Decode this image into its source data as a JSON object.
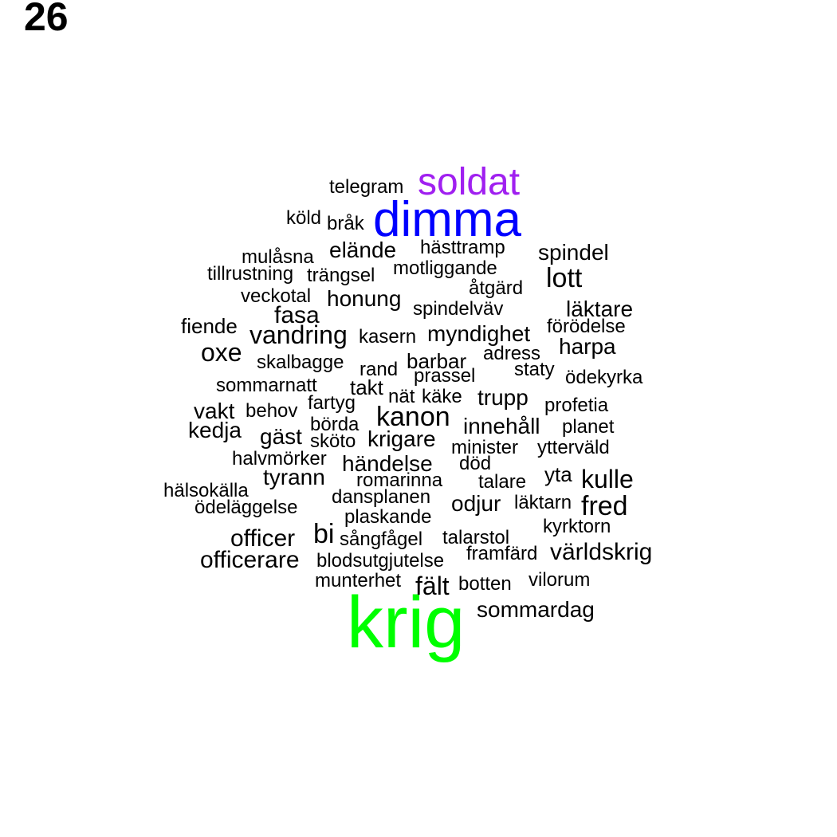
{
  "page_number": "26",
  "word_cloud": {
    "words": [
      {
        "text": "krig",
        "color": "#00ff00"
      },
      {
        "text": "dimma",
        "color": "#0000ff"
      },
      {
        "text": "soldat",
        "color": "#a020f0"
      },
      {
        "text": "telegram",
        "color": "#000000"
      },
      {
        "text": "köld",
        "color": "#000000"
      },
      {
        "text": "bråk",
        "color": "#000000"
      },
      {
        "text": "mulåsna",
        "color": "#000000"
      },
      {
        "text": "elände",
        "color": "#000000"
      },
      {
        "text": "hästtramp",
        "color": "#000000"
      },
      {
        "text": "spindel",
        "color": "#000000"
      },
      {
        "text": "tillrustning",
        "color": "#000000"
      },
      {
        "text": "trängsel",
        "color": "#000000"
      },
      {
        "text": "motliggande",
        "color": "#000000"
      },
      {
        "text": "lott",
        "color": "#000000"
      },
      {
        "text": "åtgärd",
        "color": "#000000"
      },
      {
        "text": "veckotal",
        "color": "#000000"
      },
      {
        "text": "honung",
        "color": "#000000"
      },
      {
        "text": "spindelväv",
        "color": "#000000"
      },
      {
        "text": "läktare",
        "color": "#000000"
      },
      {
        "text": "fasa",
        "color": "#000000"
      },
      {
        "text": "fiende",
        "color": "#000000"
      },
      {
        "text": "förödelse",
        "color": "#000000"
      },
      {
        "text": "vandring",
        "color": "#000000"
      },
      {
        "text": "kasern",
        "color": "#000000"
      },
      {
        "text": "myndighet",
        "color": "#000000"
      },
      {
        "text": "harpa",
        "color": "#000000"
      },
      {
        "text": "oxe",
        "color": "#000000"
      },
      {
        "text": "adress",
        "color": "#000000"
      },
      {
        "text": "skalbagge",
        "color": "#000000"
      },
      {
        "text": "barbar",
        "color": "#000000"
      },
      {
        "text": "staty",
        "color": "#000000"
      },
      {
        "text": "rand",
        "color": "#000000"
      },
      {
        "text": "prassel",
        "color": "#000000"
      },
      {
        "text": "ödekyrka",
        "color": "#000000"
      },
      {
        "text": "sommarnatt",
        "color": "#000000"
      },
      {
        "text": "takt",
        "color": "#000000"
      },
      {
        "text": "nät",
        "color": "#000000"
      },
      {
        "text": "käke",
        "color": "#000000"
      },
      {
        "text": "trupp",
        "color": "#000000"
      },
      {
        "text": "fartyg",
        "color": "#000000"
      },
      {
        "text": "profetia",
        "color": "#000000"
      },
      {
        "text": "vakt",
        "color": "#000000"
      },
      {
        "text": "behov",
        "color": "#000000"
      },
      {
        "text": "kanon",
        "color": "#000000"
      },
      {
        "text": "börda",
        "color": "#000000"
      },
      {
        "text": "innehåll",
        "color": "#000000"
      },
      {
        "text": "planet",
        "color": "#000000"
      },
      {
        "text": "kedja",
        "color": "#000000"
      },
      {
        "text": "gäst",
        "color": "#000000"
      },
      {
        "text": "sköto",
        "color": "#000000"
      },
      {
        "text": "krigare",
        "color": "#000000"
      },
      {
        "text": "minister",
        "color": "#000000"
      },
      {
        "text": "ytterväld",
        "color": "#000000"
      },
      {
        "text": "halvmörker",
        "color": "#000000"
      },
      {
        "text": "händelse",
        "color": "#000000"
      },
      {
        "text": "död",
        "color": "#000000"
      },
      {
        "text": "yta",
        "color": "#000000"
      },
      {
        "text": "tyrann",
        "color": "#000000"
      },
      {
        "text": "romarinna",
        "color": "#000000"
      },
      {
        "text": "talare",
        "color": "#000000"
      },
      {
        "text": "kulle",
        "color": "#000000"
      },
      {
        "text": "hälsokälla",
        "color": "#000000"
      },
      {
        "text": "dansplanen",
        "color": "#000000"
      },
      {
        "text": "odjur",
        "color": "#000000"
      },
      {
        "text": "läktarn",
        "color": "#000000"
      },
      {
        "text": "fred",
        "color": "#000000"
      },
      {
        "text": "ödeläggelse",
        "color": "#000000"
      },
      {
        "text": "plaskande",
        "color": "#000000"
      },
      {
        "text": "kyrktorn",
        "color": "#000000"
      },
      {
        "text": "officer",
        "color": "#000000"
      },
      {
        "text": "bi",
        "color": "#000000"
      },
      {
        "text": "sångfågel",
        "color": "#000000"
      },
      {
        "text": "talarstol",
        "color": "#000000"
      },
      {
        "text": "framfärd",
        "color": "#000000"
      },
      {
        "text": "världskrig",
        "color": "#000000"
      },
      {
        "text": "officerare",
        "color": "#000000"
      },
      {
        "text": "blodsutgjutelse",
        "color": "#000000"
      },
      {
        "text": "munterhet",
        "color": "#000000"
      },
      {
        "text": "fält",
        "color": "#000000"
      },
      {
        "text": "botten",
        "color": "#000000"
      },
      {
        "text": "vilorum",
        "color": "#000000"
      },
      {
        "text": "sommardag",
        "color": "#000000"
      }
    ]
  }
}
